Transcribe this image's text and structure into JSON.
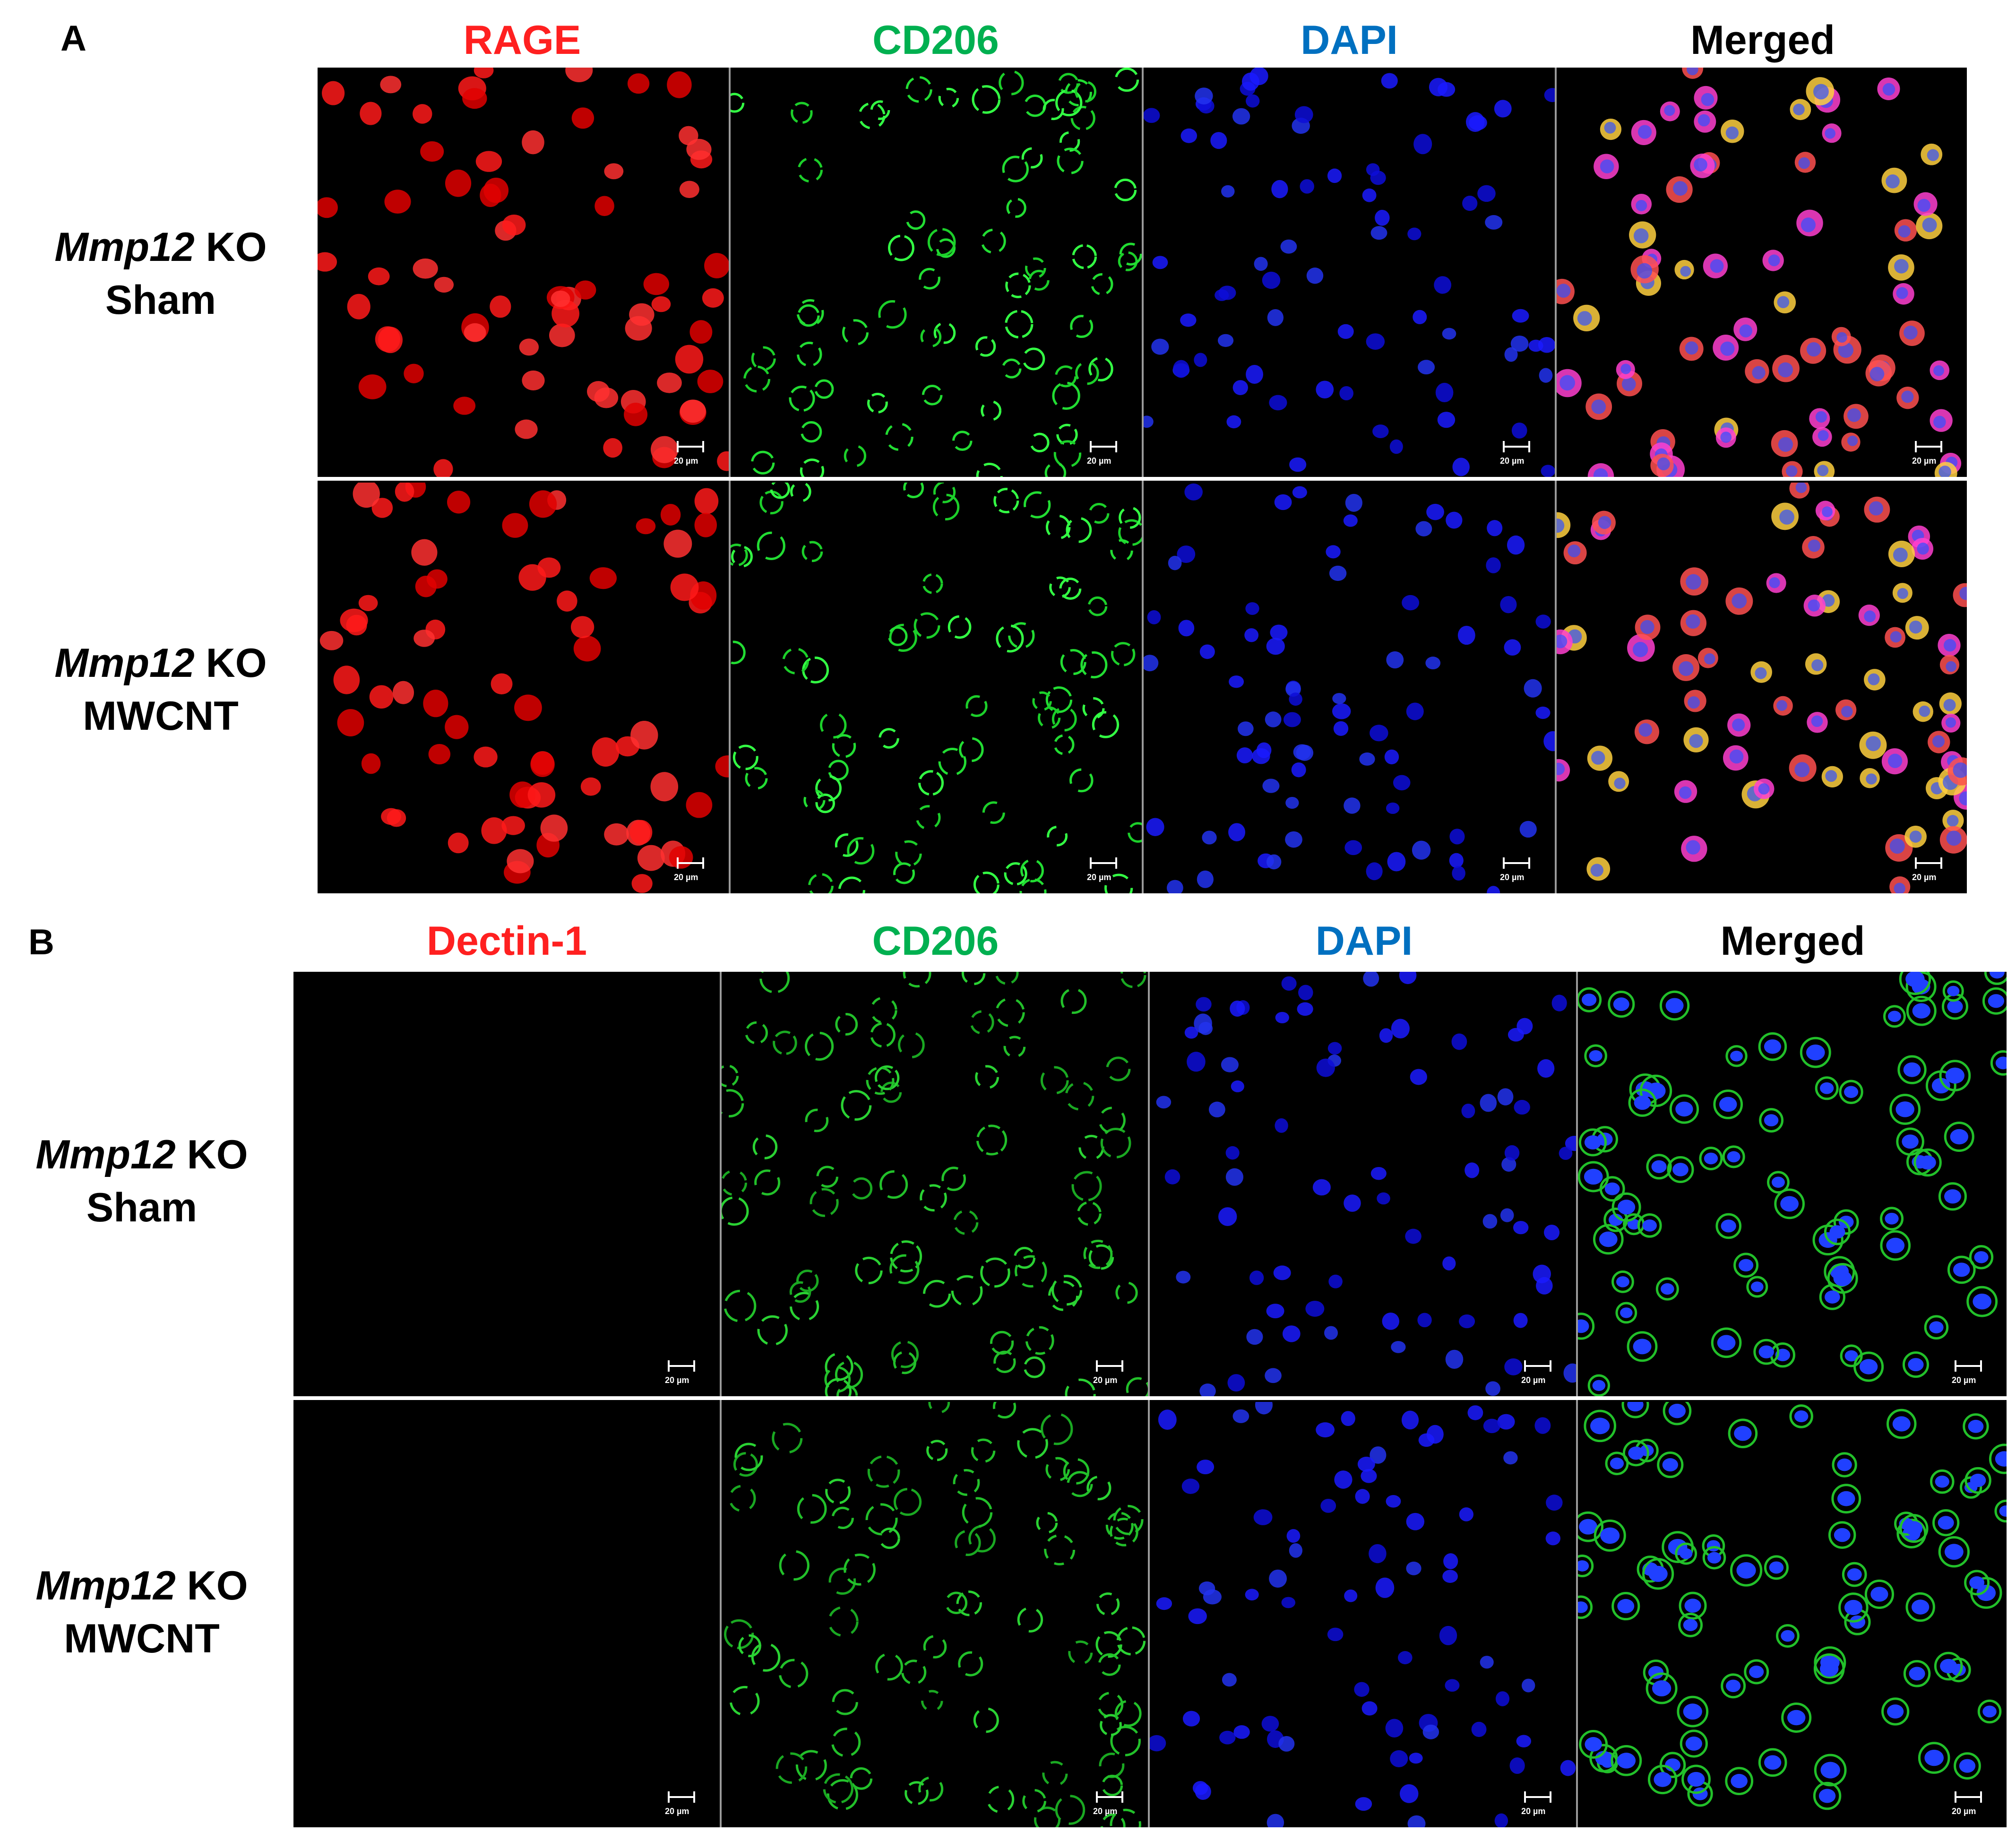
{
  "panelA": {
    "letter": "A",
    "columns": [
      {
        "label": "RAGE",
        "color": "#ff2020"
      },
      {
        "label": "CD206",
        "color": "#00b050"
      },
      {
        "label": "DAPI",
        "color": "#0070c0"
      },
      {
        "label": "Merged",
        "color": "#000000"
      }
    ],
    "rows": [
      {
        "gene": "Mmp12",
        "genotype": "KO",
        "treatment": "Sham"
      },
      {
        "gene": "Mmp12",
        "genotype": "KO",
        "treatment": "MWCNT"
      }
    ]
  },
  "panelB": {
    "letter": "B",
    "columns": [
      {
        "label": "Dectin-1",
        "color": "#ff2020"
      },
      {
        "label": "CD206",
        "color": "#00b050"
      },
      {
        "label": "DAPI",
        "color": "#0070c0"
      },
      {
        "label": "Merged",
        "color": "#000000"
      }
    ],
    "rows": [
      {
        "gene": "Mmp12",
        "genotype": "KO",
        "treatment": "Sham"
      },
      {
        "gene": "Mmp12",
        "genotype": "KO",
        "treatment": "MWCNT"
      }
    ]
  },
  "scale_label": "20 µm"
}
